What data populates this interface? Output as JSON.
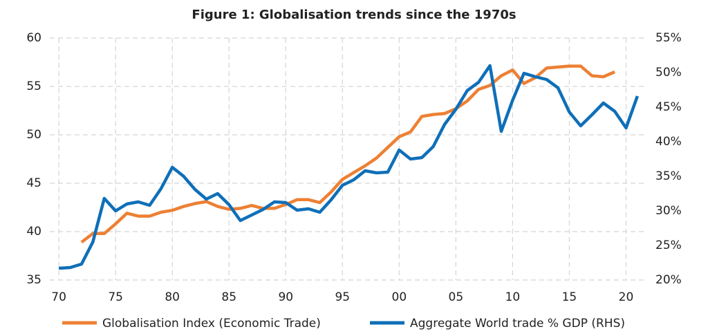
{
  "chart_data": {
    "type": "line",
    "title": "Figure 1: Globalisation trends since the 1970s",
    "xlim": [
      1969.2,
      2021.8
    ],
    "xticks": [
      {
        "value": 1970,
        "label": "70"
      },
      {
        "value": 1975,
        "label": "75"
      },
      {
        "value": 1980,
        "label": "80"
      },
      {
        "value": 1985,
        "label": "85"
      },
      {
        "value": 1990,
        "label": "90"
      },
      {
        "value": 1995,
        "label": "95"
      },
      {
        "value": 2000,
        "label": "00"
      },
      {
        "value": 2005,
        "label": "05"
      },
      {
        "value": 2010,
        "label": "10"
      },
      {
        "value": 2015,
        "label": "15"
      },
      {
        "value": 2020,
        "label": "20"
      }
    ],
    "ylim": [
      35,
      60
    ],
    "yticks": [
      35,
      40,
      45,
      50,
      55,
      60
    ],
    "y2lim": [
      20,
      55
    ],
    "y2ticks": [
      {
        "value": 20,
        "label": "20%"
      },
      {
        "value": 25,
        "label": "25%"
      },
      {
        "value": 30,
        "label": "30%"
      },
      {
        "value": 35,
        "label": "35%"
      },
      {
        "value": 40,
        "label": "40%"
      },
      {
        "value": 45,
        "label": "45%"
      },
      {
        "value": 50,
        "label": "50%"
      },
      {
        "value": 55,
        "label": "55%"
      }
    ],
    "grid": true,
    "legend": "bottom",
    "series": [
      {
        "name": "Globalisation Index (Economic Trade)",
        "color": "#ed8034",
        "x": [
          1972,
          1973,
          1974,
          1975,
          1976,
          1977,
          1978,
          1979,
          1980,
          1981,
          1982,
          1983,
          1984,
          1985,
          1986,
          1987,
          1988,
          1989,
          1990,
          1991,
          1992,
          1993,
          1994,
          1995,
          1996,
          1997,
          1998,
          1999,
          2000,
          2001,
          2002,
          2003,
          2004,
          2005,
          2006,
          2007,
          2008,
          2009,
          2010,
          2011,
          2012,
          2013,
          2014,
          2015,
          2016,
          2017,
          2018,
          2019
        ],
        "values": [
          38.9,
          39.8,
          39.8,
          40.8,
          41.9,
          41.6,
          41.6,
          42.0,
          42.2,
          42.6,
          42.9,
          43.1,
          42.6,
          42.3,
          42.4,
          42.7,
          42.4,
          42.4,
          42.8,
          43.3,
          43.3,
          43.0,
          44.1,
          45.4,
          46.1,
          46.8,
          47.6,
          48.7,
          49.8,
          50.3,
          51.9,
          52.1,
          52.2,
          52.7,
          53.5,
          54.7,
          55.1,
          56.1,
          56.7,
          55.3,
          55.9,
          56.9,
          57.0,
          57.1,
          57.1,
          56.1,
          56.0,
          56.5
        ]
      },
      {
        "name": "Aggregate World trade % GDP (RHS)",
        "color": "#0f6fb8",
        "axis": "y2",
        "x": [
          1970,
          1971,
          1972,
          1973,
          1974,
          1975,
          1976,
          1977,
          1978,
          1979,
          1980,
          1981,
          1982,
          1983,
          1984,
          1985,
          1986,
          1987,
          1988,
          1989,
          1990,
          1991,
          1992,
          1993,
          1994,
          1995,
          1996,
          1997,
          1998,
          1999,
          2000,
          2001,
          2002,
          2003,
          2004,
          2005,
          2006,
          2007,
          2008,
          2009,
          2010,
          2011,
          2012,
          2013,
          2014,
          2015,
          2016,
          2017,
          2018,
          2019,
          2020,
          2021
        ],
        "values": [
          21.7,
          21.8,
          22.3,
          25.5,
          31.8,
          30.0,
          31.0,
          31.3,
          30.8,
          33.2,
          36.3,
          35.0,
          33.1,
          31.7,
          32.5,
          30.9,
          28.6,
          29.4,
          30.2,
          31.3,
          31.2,
          30.1,
          30.3,
          29.8,
          31.6,
          33.7,
          34.5,
          35.8,
          35.5,
          35.6,
          38.8,
          37.5,
          37.7,
          39.3,
          42.5,
          44.7,
          47.4,
          48.6,
          51.0,
          41.5,
          46.0,
          49.9,
          49.4,
          49.0,
          47.8,
          44.3,
          42.3,
          43.9,
          45.6,
          44.4,
          42.0,
          46.6
        ]
      }
    ]
  }
}
